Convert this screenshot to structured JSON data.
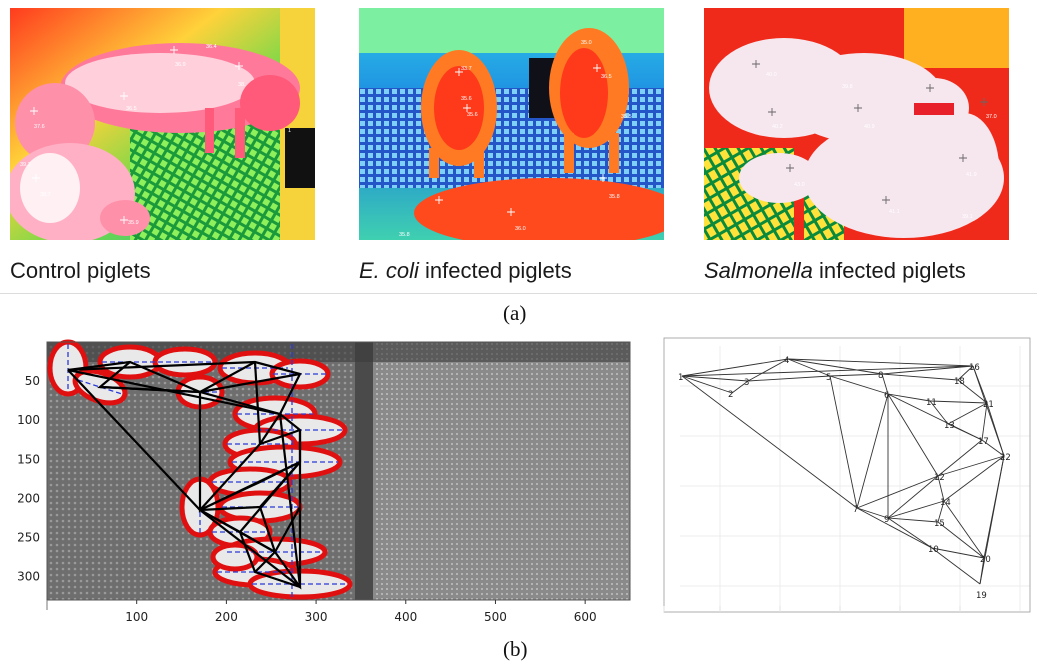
{
  "panel_a": {
    "label": "(a)",
    "images": [
      {
        "caption": "Control piglets",
        "temperatures": [
          "36.9",
          "36.4",
          "36.5",
          "38.",
          "37.6",
          "39.3",
          "38.7",
          "35.9",
          "1",
          "g",
          "h"
        ]
      },
      {
        "caption_italic": "E. coli",
        "caption_rest": " infected piglets",
        "temperatures": [
          "33.7",
          "35.6",
          "35.6",
          "35.0",
          "36.5",
          "35.5",
          "35.8",
          "35.8",
          "36.0"
        ]
      },
      {
        "caption_italic": "Salmonella",
        "caption_rest": " infected piglets",
        "temperatures": [
          "40.0",
          "39.8",
          "40.2",
          "40.9",
          "37.0",
          "41.9",
          "41.1",
          "39.1",
          "43.0"
        ]
      }
    ]
  },
  "panel_b": {
    "label": "(b)",
    "left_plot": {
      "x_ticks": [
        "100",
        "200",
        "300",
        "400",
        "500",
        "600"
      ],
      "y_ticks": [
        "50",
        "100",
        "150",
        "200",
        "250",
        "300"
      ]
    },
    "graph_nodes": [
      "1",
      "2",
      "3",
      "4",
      "5",
      "6",
      "7",
      "8",
      "9",
      "10",
      "11",
      "12",
      "13",
      "14",
      "15",
      "16",
      "17",
      "18",
      "19",
      "20",
      "21",
      "22"
    ]
  }
}
